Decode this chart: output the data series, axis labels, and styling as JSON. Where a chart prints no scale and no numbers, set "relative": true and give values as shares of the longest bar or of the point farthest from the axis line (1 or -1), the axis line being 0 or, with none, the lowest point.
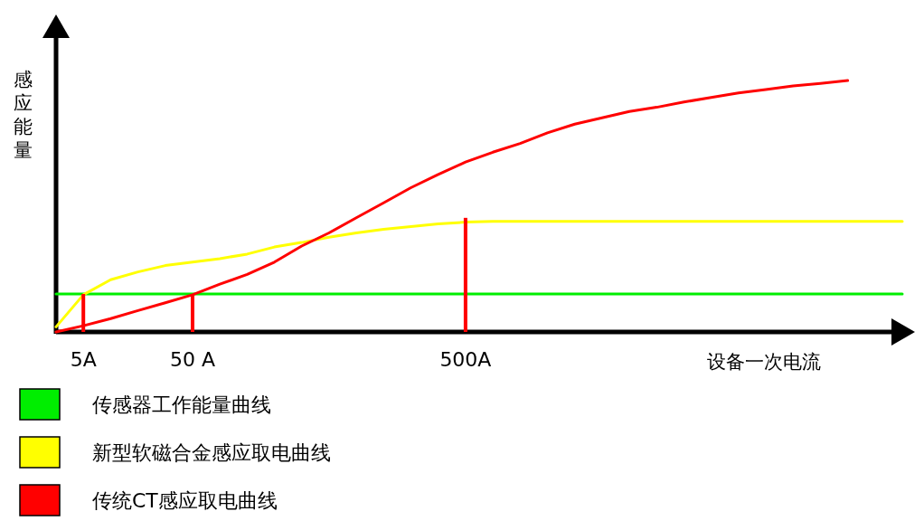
{
  "chart_data": {
    "type": "line",
    "relative": true,
    "xlabel": "设备一次电流",
    "ylabel": "感应能量",
    "legend": "bottom",
    "categories": [
      null,
      "5A",
      null,
      null,
      null,
      "50 A",
      null,
      null,
      null,
      null,
      null,
      null,
      null,
      null,
      null,
      "500A",
      null,
      null,
      null,
      null,
      null,
      null,
      null,
      null,
      null,
      null,
      null,
      null,
      null,
      null,
      null,
      null
    ],
    "series": [
      {
        "name": "传感器工作能量曲线",
        "color": "#00ee00",
        "values": [
          0.151,
          0.151,
          0.151,
          0.151,
          0.151,
          0.151,
          0.151,
          0.151,
          0.151,
          0.151,
          0.151,
          0.151,
          0.151,
          0.151,
          0.151,
          0.151,
          0.151,
          0.151,
          0.151,
          0.151,
          0.151,
          0.151,
          0.151,
          0.151,
          0.151,
          0.151,
          0.151,
          0.151,
          0.151,
          0.151,
          0.151,
          0.151
        ]
      },
      {
        "name": "新型软磁合金感应取电曲线",
        "color": "#ffff00",
        "values": [
          0.02,
          0.148,
          0.208,
          0.239,
          0.264,
          0.278,
          0.292,
          0.31,
          0.338,
          0.356,
          0.377,
          0.394,
          0.408,
          0.419,
          0.43,
          0.437,
          0.44,
          0.44,
          0.44,
          0.44,
          0.44,
          0.44,
          0.44,
          0.44,
          0.44,
          0.44,
          0.44,
          0.44,
          0.44,
          0.44,
          0.44,
          0.44
        ]
      },
      {
        "name": "传统CT感应取电曲线",
        "color": "#ff0000",
        "values": [
          0,
          0.025,
          0.053,
          0.085,
          0.116,
          0.148,
          0.19,
          0.229,
          0.278,
          0.342,
          0.394,
          0.454,
          0.514,
          0.574,
          0.627,
          0.676,
          0.715,
          0.75,
          0.792,
          0.827,
          0.852,
          0.877,
          0.894,
          0.915,
          0.933,
          0.951,
          0.965,
          0.979,
          0.989,
          1.0,
          null,
          null
        ]
      },
      {
        "type": "bar",
        "color": "#ff0000",
        "values": [
          null,
          0.151,
          null,
          null,
          null,
          0.151,
          null,
          null,
          null,
          null,
          null,
          null,
          null,
          null,
          null,
          0.454,
          null,
          null,
          null,
          null,
          null,
          null,
          null,
          null,
          null,
          null,
          null,
          null,
          null,
          null,
          null,
          null
        ]
      }
    ]
  }
}
